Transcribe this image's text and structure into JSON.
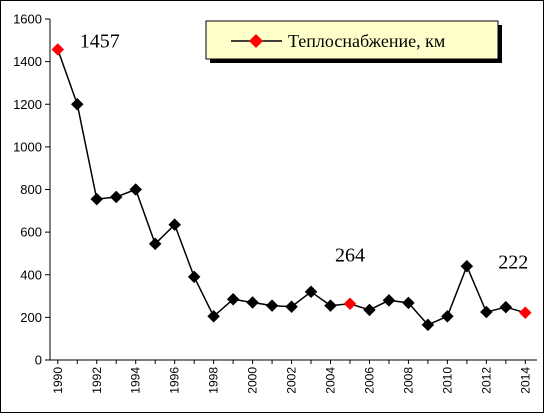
{
  "chart_data": {
    "type": "line",
    "title": "",
    "xlabel": "",
    "ylabel": "",
    "ylim": [
      0,
      1600
    ],
    "y_ticks": [
      0,
      200,
      400,
      600,
      800,
      1000,
      1200,
      1400,
      1600
    ],
    "x_ticks": [
      1990,
      1992,
      1994,
      1996,
      1998,
      2000,
      2002,
      2004,
      2006,
      2008,
      2010,
      2012,
      2014
    ],
    "grid": false,
    "legend_position": "top-right",
    "series": [
      {
        "name": "Теплоснабжение, км",
        "color": "#000000",
        "marker": "diamond",
        "x": [
          1990,
          1991,
          1992,
          1993,
          1994,
          1995,
          1996,
          1997,
          1998,
          1999,
          2000,
          2001,
          2002,
          2003,
          2004,
          2005,
          2006,
          2007,
          2008,
          2009,
          2010,
          2011,
          2012,
          2013,
          2014
        ],
        "y": [
          1457,
          1200,
          755,
          765,
          800,
          545,
          635,
          390,
          205,
          285,
          270,
          255,
          250,
          320,
          255,
          264,
          235,
          280,
          268,
          165,
          205,
          440,
          225,
          248,
          222
        ]
      }
    ],
    "highlighted_points": [
      {
        "x": 1990,
        "y": 1457,
        "label": "1457",
        "color": "#ff0000"
      },
      {
        "x": 2005,
        "y": 264,
        "label": "264",
        "color": "#ff0000"
      },
      {
        "x": 2014,
        "y": 222,
        "label": "222",
        "color": "#ff0000"
      }
    ],
    "legend_background": "#ffffcc",
    "marker_color": "#000000",
    "highlight_color": "#ff0000"
  }
}
